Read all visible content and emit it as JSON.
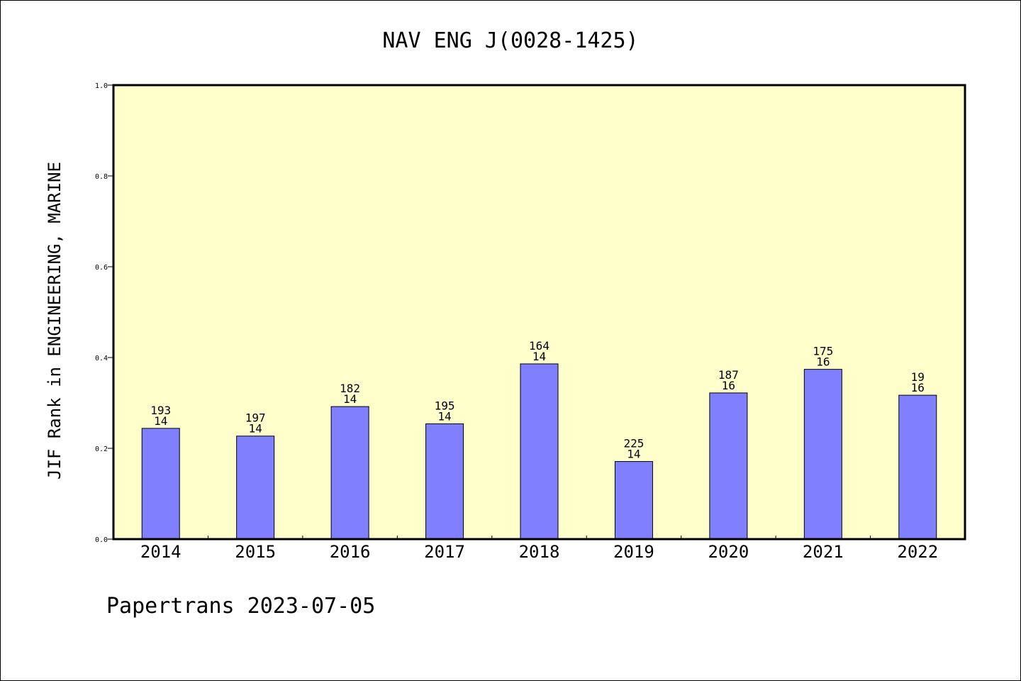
{
  "title": "NAV ENG J(0028-1425)",
  "footer": "Papertrans 2023-07-05",
  "colors": {
    "plot_background": "#ffffcc",
    "bar_fill": "#8080ff",
    "bar_stroke": "#000000"
  },
  "chart_data": {
    "type": "bar",
    "title": "NAV ENG J(0028-1425)",
    "xlabel": "",
    "ylabel": "JIF Rank in ENGINEERING, MARINE",
    "ylim": [
      0,
      1.0
    ],
    "yticks": [
      "0.0",
      "0.2",
      "0.4",
      "0.6",
      "0.8",
      "1.0"
    ],
    "categories": [
      "2014",
      "2015",
      "2016",
      "2017",
      "2018",
      "2019",
      "2020",
      "2021",
      "2022"
    ],
    "values": [
      0.244,
      0.227,
      0.292,
      0.254,
      0.386,
      0.171,
      0.322,
      0.374,
      0.317
    ],
    "data_labels": [
      [
        "193",
        "14"
      ],
      [
        "197",
        "14"
      ],
      [
        "182",
        "14"
      ],
      [
        "195",
        "14"
      ],
      [
        "164",
        "14"
      ],
      [
        "225",
        "14"
      ],
      [
        "187",
        "16"
      ],
      [
        "175",
        "16"
      ],
      [
        "19",
        "16"
      ]
    ],
    "grid": false,
    "legend": "none"
  }
}
